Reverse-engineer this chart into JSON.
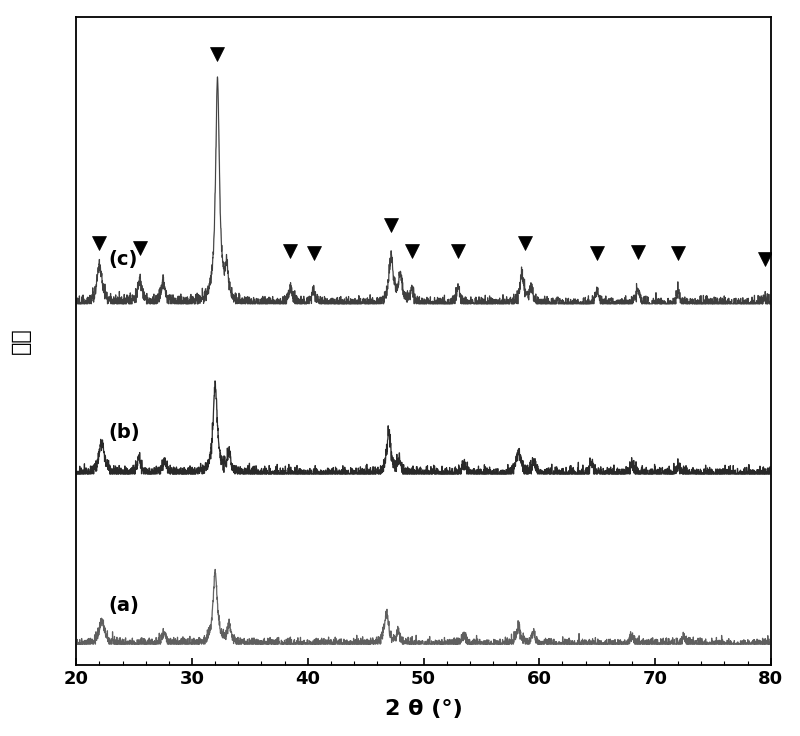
{
  "x_min": 20,
  "x_max": 80,
  "xlabel": "2 θ (°)",
  "ylabel": "强度",
  "background_color": "#ffffff",
  "label_fontsize": 15,
  "tick_fontsize": 13,
  "offsets": [
    0.0,
    0.32,
    0.64
  ],
  "labels": [
    "(a)",
    "(b)",
    "(c)"
  ],
  "marker_positions": [
    22.0,
    25.5,
    32.2,
    38.5,
    40.5,
    47.2,
    49.0,
    53.0,
    58.8,
    65.0,
    68.5,
    72.0,
    79.5
  ],
  "seed": 42
}
